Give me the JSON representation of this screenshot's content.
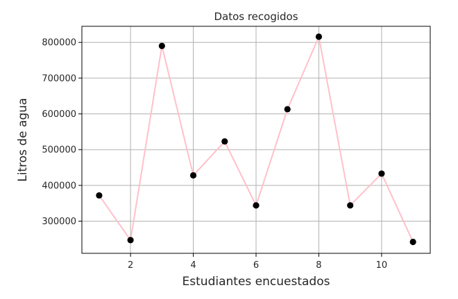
{
  "chart_data": {
    "type": "line",
    "title": "Datos recogidos",
    "xlabel": "Estudiantes encuestados",
    "ylabel": "Litros de agua",
    "x": [
      1,
      2,
      3,
      4,
      5,
      6,
      7,
      8,
      9,
      10,
      11
    ],
    "series": [
      {
        "values": [
          372000,
          247000,
          790000,
          428000,
          523000,
          344000,
          613000,
          816000,
          344000,
          433000,
          242000
        ],
        "line_color": "#ffc0cb",
        "marker_color": "#000000"
      }
    ],
    "xlim": [
      0.45,
      11.55
    ],
    "ylim": [
      210000,
      845000
    ],
    "xticks": [
      2,
      4,
      6,
      8,
      10
    ],
    "xtick_labels": [
      "2",
      "4",
      "6",
      "8",
      "10"
    ],
    "yticks": [
      300000,
      400000,
      500000,
      600000,
      700000,
      800000
    ],
    "ytick_labels": [
      "300000",
      "400000",
      "500000",
      "600000",
      "700000",
      "800000"
    ],
    "grid": true,
    "grid_color": "#b0b0b0"
  }
}
